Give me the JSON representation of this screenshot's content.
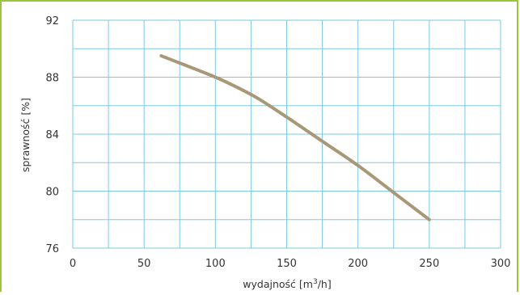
{
  "chart_data": {
    "type": "line",
    "title": "",
    "xlabel_prefix": "wydajność  [m",
    "xlabel_sup": "3",
    "xlabel_suffix": "/h]",
    "ylabel": "sprawność  [%]",
    "xlim": [
      0,
      300
    ],
    "ylim": [
      76,
      92
    ],
    "x_ticks": [
      0,
      50,
      100,
      150,
      200,
      250,
      300
    ],
    "y_ticks": [
      76,
      80,
      84,
      88,
      92
    ],
    "grid": true,
    "series": [
      {
        "color": "#a89878",
        "x": [
          62,
          80,
          100,
          115,
          130,
          150,
          175,
          200,
          225,
          250
        ],
        "y": [
          89.5,
          88.8,
          88.0,
          87.3,
          86.5,
          85.2,
          83.5,
          81.8,
          79.9,
          78.0
        ]
      }
    ],
    "colors": {
      "frame": "#9bc53d",
      "grid": "#7ec8e3",
      "line": "#a89878"
    }
  }
}
